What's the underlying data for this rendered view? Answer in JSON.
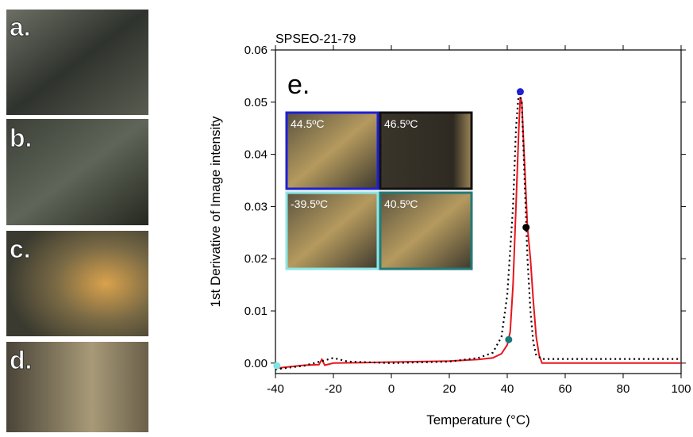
{
  "panels": [
    "a.",
    "b.",
    "c.",
    "d."
  ],
  "chart_data": {
    "type": "line",
    "title": "SPSEO-21-79",
    "x_label": "Temperature (°C)",
    "y_label": "1st Derivative of Image intensity",
    "annotations": [
      "e."
    ],
    "xlim": [
      -40,
      100
    ],
    "xticks": [
      -40,
      -20,
      0,
      20,
      40,
      60,
      80,
      100
    ],
    "ylim": [
      -0.002,
      0.06
    ],
    "yticks": [
      {
        "value": 0,
        "label": "0.00"
      },
      0.01,
      0.02,
      0.03,
      0.04,
      0.05,
      0.06
    ],
    "lines": [
      {
        "color": "#e8141c",
        "style": "solid",
        "x": [
          -40,
          -35,
          -30,
          -25,
          -24,
          -23,
          -20,
          -10,
          0,
          10,
          20,
          30,
          35,
          38,
          40,
          41,
          42,
          43,
          44,
          44.5,
          45,
          46,
          47,
          48,
          49,
          50,
          51,
          52,
          60,
          80,
          100
        ],
        "values": [
          -0.001,
          -0.0007,
          -0.0004,
          -0.0003,
          0.0007,
          -0.0004,
          0,
          0.0001,
          0.0002,
          0.0003,
          0.0004,
          0.0007,
          0.001,
          0.0018,
          0.0035,
          0.006,
          0.015,
          0.03,
          0.045,
          0.051,
          0.05,
          0.038,
          0.026,
          0.02,
          0.012,
          0.005,
          0.0015,
          0,
          0,
          0,
          0
        ]
      },
      {
        "color": "#000000",
        "style": "dotted",
        "x": [
          -40,
          -30,
          -20,
          -15,
          0,
          20,
          30,
          35,
          38,
          40,
          42,
          43,
          44,
          45,
          46,
          47,
          48,
          49,
          50,
          52,
          60,
          100
        ],
        "values": [
          -0.0012,
          -0.0005,
          0.001,
          0.0003,
          0,
          0.0003,
          0.001,
          0.002,
          0.005,
          0.013,
          0.03,
          0.045,
          0.052,
          0.05,
          0.035,
          0.02,
          0.01,
          0.004,
          0.0015,
          0.0008,
          0.0008,
          0.0008
        ]
      }
    ],
    "points": {
      "x": [
        44.5,
        46.5,
        40.5,
        -39.5
      ],
      "values": [
        0.052,
        0.026,
        0.0045,
        -0.0005
      ],
      "colors": [
        "#1f1fd6",
        "#000000",
        "#1a7a7a",
        "#7fe5e5"
      ]
    },
    "insets": [
      {
        "label": "44.5ºC",
        "color": "#1f1fd6"
      },
      {
        "label": "46.5ºC",
        "color": "#111111"
      },
      {
        "label": "-39.5ºC",
        "color": "#8ee6e6"
      },
      {
        "label": "40.5ºC",
        "color": "#237a78"
      }
    ]
  }
}
